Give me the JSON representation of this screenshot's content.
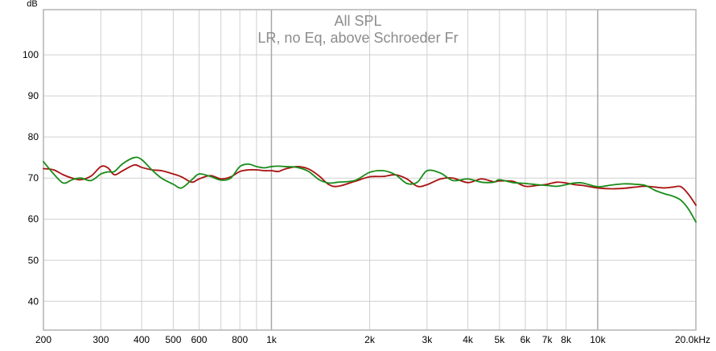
{
  "chart_data": {
    "type": "line",
    "title": "All SPL",
    "subtitle": "LR, no Eq, above Schroeder Fr",
    "ylabel": "dB",
    "xlabel": "",
    "x_scale": "log",
    "xlim": [
      200,
      20000
    ],
    "ylim": [
      33,
      111
    ],
    "x_ticks": [
      {
        "value": 200,
        "label": "200",
        "major": false
      },
      {
        "value": 300,
        "label": "300",
        "major": false
      },
      {
        "value": 400,
        "label": "400",
        "major": false
      },
      {
        "value": 500,
        "label": "500",
        "major": false
      },
      {
        "value": 600,
        "label": "600",
        "major": false
      },
      {
        "value": 800,
        "label": "800",
        "major": false
      },
      {
        "value": 1000,
        "label": "1k",
        "major": true
      },
      {
        "value": 2000,
        "label": "2k",
        "major": false
      },
      {
        "value": 3000,
        "label": "3k",
        "major": false
      },
      {
        "value": 4000,
        "label": "4k",
        "major": false
      },
      {
        "value": 5000,
        "label": "5k",
        "major": false
      },
      {
        "value": 6000,
        "label": "6k",
        "major": false
      },
      {
        "value": 7000,
        "label": "7k",
        "major": false
      },
      {
        "value": 8000,
        "label": "8k",
        "major": false
      },
      {
        "value": 10000,
        "label": "10k",
        "major": true
      },
      {
        "value": 20000,
        "label": "20.0kHz",
        "major": false
      }
    ],
    "x_minor_grid": [
      700,
      900
    ],
    "y_ticks": [
      {
        "value": 40,
        "label": "40"
      },
      {
        "value": 50,
        "label": "50"
      },
      {
        "value": 60,
        "label": "60"
      },
      {
        "value": 70,
        "label": "70"
      },
      {
        "value": 80,
        "label": "80"
      },
      {
        "value": 90,
        "label": "90"
      },
      {
        "value": 100,
        "label": "100"
      }
    ],
    "grid": true,
    "legend": "none",
    "colors": {
      "background": "#ffffff",
      "grid": "#d0d0d0",
      "grid_major": "#a8a8a8",
      "frame": "#b4b4b4",
      "title": "#8c8c8c"
    },
    "series": [
      {
        "color": "#aa1111",
        "x": [
          200,
          215,
          230,
          245,
          260,
          280,
          300,
          315,
          330,
          350,
          380,
          400,
          430,
          460,
          500,
          530,
          570,
          600,
          650,
          700,
          750,
          800,
          850,
          900,
          950,
          1000,
          1050,
          1100,
          1200,
          1300,
          1400,
          1500,
          1600,
          1800,
          2000,
          2200,
          2400,
          2600,
          2800,
          3000,
          3300,
          3600,
          4000,
          4400,
          4800,
          5000,
          5500,
          6000,
          6500,
          7000,
          7500,
          8000,
          8500,
          9000,
          10000,
          11000,
          12000,
          13000,
          14000,
          15000,
          16000,
          17000,
          18000,
          19000,
          20000
        ],
        "y": [
          72.3,
          72.0,
          70.8,
          70.0,
          69.6,
          70.5,
          72.8,
          72.5,
          70.8,
          71.8,
          73.2,
          72.6,
          72.0,
          71.8,
          71.0,
          70.3,
          69.0,
          69.8,
          70.6,
          69.8,
          70.3,
          71.6,
          72.0,
          72.0,
          71.8,
          71.8,
          71.6,
          72.2,
          72.8,
          72.2,
          70.5,
          68.4,
          68.0,
          69.2,
          70.3,
          70.4,
          70.8,
          69.8,
          68.0,
          68.4,
          69.8,
          70.0,
          68.9,
          69.8,
          69.1,
          69.3,
          69.2,
          68.0,
          68.2,
          68.5,
          69.0,
          68.8,
          68.4,
          68.2,
          67.6,
          67.4,
          67.5,
          67.8,
          68.0,
          67.8,
          67.6,
          67.8,
          67.9,
          66.0,
          63.4
        ]
      },
      {
        "color": "#1a8c1a",
        "x": [
          200,
          215,
          230,
          245,
          260,
          280,
          300,
          315,
          330,
          350,
          380,
          400,
          430,
          460,
          500,
          530,
          570,
          600,
          650,
          700,
          750,
          800,
          850,
          900,
          950,
          1000,
          1050,
          1100,
          1200,
          1300,
          1400,
          1500,
          1600,
          1800,
          2000,
          2200,
          2400,
          2600,
          2800,
          3000,
          3300,
          3600,
          4000,
          4400,
          4800,
          5000,
          5500,
          6000,
          6500,
          7000,
          7500,
          8000,
          8500,
          9000,
          10000,
          11000,
          12000,
          13000,
          14000,
          15000,
          16000,
          17000,
          18000,
          19000,
          20000
        ],
        "y": [
          74.0,
          71.0,
          68.8,
          69.6,
          70.0,
          69.4,
          71.0,
          71.5,
          71.6,
          73.5,
          75.0,
          74.5,
          72.0,
          70.0,
          68.5,
          67.6,
          69.6,
          71.0,
          70.4,
          69.5,
          70.0,
          72.8,
          73.4,
          72.8,
          72.5,
          72.8,
          72.9,
          72.8,
          72.6,
          71.6,
          69.6,
          68.8,
          69.0,
          69.4,
          71.4,
          71.8,
          70.8,
          68.7,
          69.0,
          71.8,
          71.2,
          69.4,
          69.8,
          69.0,
          69.0,
          69.6,
          68.9,
          68.7,
          68.4,
          68.2,
          68.0,
          68.4,
          68.8,
          68.8,
          67.9,
          68.3,
          68.6,
          68.5,
          68.2,
          67.0,
          66.2,
          65.6,
          64.6,
          62.4,
          59.3
        ]
      }
    ]
  }
}
